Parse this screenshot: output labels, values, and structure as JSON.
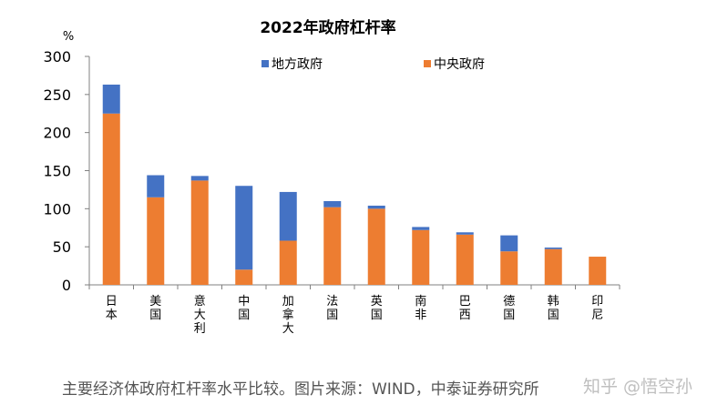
{
  "chart_data": {
    "type": "bar",
    "stacked": true,
    "title": "2022年政府杠杆率",
    "ylabel": "%",
    "ylim": [
      0,
      300
    ],
    "yticks": [
      0,
      50,
      100,
      150,
      200,
      250,
      300
    ],
    "grid": false,
    "legend_position": "top",
    "categories": [
      "日本",
      "美国",
      "意大利",
      "中国",
      "加拿大",
      "法国",
      "英国",
      "南非",
      "巴西",
      "德国",
      "韩国",
      "印尼"
    ],
    "series": [
      {
        "name": "中央政府",
        "color": "#ED7D31",
        "values": [
          225,
          115,
          137,
          20,
          58,
          102,
          100,
          72,
          66,
          44,
          47,
          37
        ]
      },
      {
        "name": "地方政府",
        "color": "#4472C4",
        "values": [
          38,
          29,
          6,
          110,
          64,
          8,
          4,
          4,
          3,
          21,
          2,
          0
        ]
      }
    ]
  },
  "caption": "主要经济体政府杠杆率水平比较。图片来源：WIND，中泰证券研究所",
  "watermark": "知乎 @悟空孙"
}
